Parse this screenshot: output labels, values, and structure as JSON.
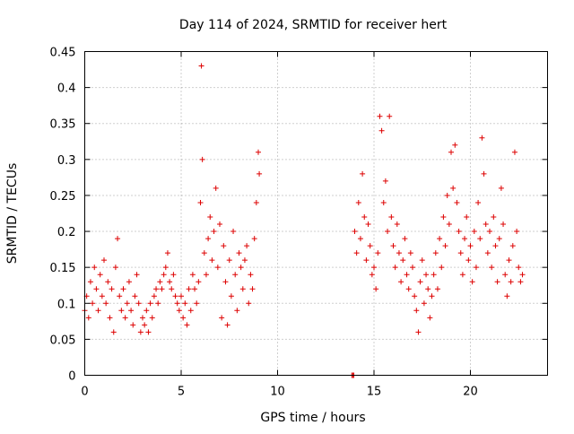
{
  "chart_data": {
    "type": "scatter",
    "title": "Day 114 of 2024, SRMTID for receiver hert",
    "xlabel": "GPS time / hours",
    "ylabel": "SRMTID / TECUs",
    "xlim": [
      0,
      24
    ],
    "ylim": [
      0,
      0.45
    ],
    "xticks": [
      0,
      5,
      10,
      15,
      20
    ],
    "xtick_labels": [
      "0",
      "5",
      "10",
      "15",
      "20"
    ],
    "yticks": [
      0,
      0.05,
      0.1,
      0.15,
      0.2,
      0.25,
      0.3,
      0.35,
      0.4,
      0.45
    ],
    "ytick_labels": [
      "0",
      "0.05",
      "0.1",
      "0.15",
      "0.2",
      "0.25",
      "0.3",
      "0.35",
      "0.4",
      "0.45"
    ],
    "grid": true,
    "marker": "+",
    "color": "#dd0000",
    "series": [
      {
        "name": "SRMTID",
        "points": [
          [
            0.0,
            0.09
          ],
          [
            0.1,
            0.11
          ],
          [
            0.2,
            0.08
          ],
          [
            0.3,
            0.13
          ],
          [
            0.4,
            0.1
          ],
          [
            0.5,
            0.15
          ],
          [
            0.6,
            0.12
          ],
          [
            0.7,
            0.09
          ],
          [
            0.8,
            0.14
          ],
          [
            0.9,
            0.11
          ],
          [
            1.0,
            0.16
          ],
          [
            1.1,
            0.1
          ],
          [
            1.2,
            0.13
          ],
          [
            1.3,
            0.08
          ],
          [
            1.4,
            0.12
          ],
          [
            1.5,
            0.06
          ],
          [
            1.6,
            0.15
          ],
          [
            1.7,
            0.19
          ],
          [
            1.8,
            0.11
          ],
          [
            1.9,
            0.09
          ],
          [
            2.0,
            0.12
          ],
          [
            2.1,
            0.08
          ],
          [
            2.2,
            0.1
          ],
          [
            2.3,
            0.13
          ],
          [
            2.4,
            0.09
          ],
          [
            2.5,
            0.07
          ],
          [
            2.6,
            0.11
          ],
          [
            2.7,
            0.14
          ],
          [
            2.8,
            0.1
          ],
          [
            2.9,
            0.06
          ],
          [
            3.0,
            0.08
          ],
          [
            3.1,
            0.07
          ],
          [
            3.2,
            0.09
          ],
          [
            3.3,
            0.06
          ],
          [
            3.4,
            0.1
          ],
          [
            3.5,
            0.08
          ],
          [
            3.6,
            0.11
          ],
          [
            3.7,
            0.12
          ],
          [
            3.8,
            0.1
          ],
          [
            3.9,
            0.13
          ],
          [
            4.0,
            0.12
          ],
          [
            4.1,
            0.14
          ],
          [
            4.2,
            0.15
          ],
          [
            4.3,
            0.17
          ],
          [
            4.4,
            0.13
          ],
          [
            4.5,
            0.12
          ],
          [
            4.6,
            0.14
          ],
          [
            4.7,
            0.11
          ],
          [
            4.8,
            0.1
          ],
          [
            4.9,
            0.09
          ],
          [
            5.0,
            0.11
          ],
          [
            5.1,
            0.08
          ],
          [
            5.2,
            0.1
          ],
          [
            5.3,
            0.07
          ],
          [
            5.4,
            0.12
          ],
          [
            5.5,
            0.09
          ],
          [
            5.6,
            0.14
          ],
          [
            5.7,
            0.12
          ],
          [
            5.8,
            0.1
          ],
          [
            5.9,
            0.13
          ],
          [
            6.0,
            0.24
          ],
          [
            6.05,
            0.43
          ],
          [
            6.1,
            0.3
          ],
          [
            6.2,
            0.17
          ],
          [
            6.3,
            0.14
          ],
          [
            6.4,
            0.19
          ],
          [
            6.5,
            0.22
          ],
          [
            6.6,
            0.16
          ],
          [
            6.7,
            0.2
          ],
          [
            6.8,
            0.26
          ],
          [
            6.9,
            0.15
          ],
          [
            7.0,
            0.21
          ],
          [
            7.1,
            0.08
          ],
          [
            7.2,
            0.18
          ],
          [
            7.3,
            0.13
          ],
          [
            7.4,
            0.07
          ],
          [
            7.5,
            0.16
          ],
          [
            7.6,
            0.11
          ],
          [
            7.7,
            0.2
          ],
          [
            7.8,
            0.14
          ],
          [
            7.9,
            0.09
          ],
          [
            8.0,
            0.17
          ],
          [
            8.1,
            0.15
          ],
          [
            8.2,
            0.12
          ],
          [
            8.3,
            0.16
          ],
          [
            8.4,
            0.18
          ],
          [
            8.5,
            0.1
          ],
          [
            8.6,
            0.14
          ],
          [
            8.7,
            0.12
          ],
          [
            8.8,
            0.19
          ],
          [
            8.9,
            0.24
          ],
          [
            9.0,
            0.31
          ],
          [
            9.05,
            0.28
          ],
          [
            13.85,
            0.0
          ],
          [
            13.9,
            0.0
          ],
          [
            13.95,
            0.0
          ],
          [
            14.0,
            0.2
          ],
          [
            14.1,
            0.17
          ],
          [
            14.2,
            0.24
          ],
          [
            14.3,
            0.19
          ],
          [
            14.4,
            0.28
          ],
          [
            14.5,
            0.22
          ],
          [
            14.6,
            0.16
          ],
          [
            14.7,
            0.21
          ],
          [
            14.8,
            0.18
          ],
          [
            14.9,
            0.14
          ],
          [
            15.0,
            0.15
          ],
          [
            15.1,
            0.12
          ],
          [
            15.2,
            0.17
          ],
          [
            15.3,
            0.36
          ],
          [
            15.4,
            0.34
          ],
          [
            15.5,
            0.24
          ],
          [
            15.6,
            0.27
          ],
          [
            15.7,
            0.2
          ],
          [
            15.8,
            0.36
          ],
          [
            15.9,
            0.22
          ],
          [
            16.0,
            0.18
          ],
          [
            16.1,
            0.15
          ],
          [
            16.2,
            0.21
          ],
          [
            16.3,
            0.17
          ],
          [
            16.4,
            0.13
          ],
          [
            16.5,
            0.16
          ],
          [
            16.6,
            0.19
          ],
          [
            16.7,
            0.14
          ],
          [
            16.8,
            0.12
          ],
          [
            16.9,
            0.17
          ],
          [
            17.0,
            0.15
          ],
          [
            17.1,
            0.11
          ],
          [
            17.2,
            0.09
          ],
          [
            17.3,
            0.06
          ],
          [
            17.4,
            0.13
          ],
          [
            17.5,
            0.16
          ],
          [
            17.6,
            0.1
          ],
          [
            17.7,
            0.14
          ],
          [
            17.8,
            0.12
          ],
          [
            17.9,
            0.08
          ],
          [
            18.0,
            0.11
          ],
          [
            18.1,
            0.14
          ],
          [
            18.2,
            0.17
          ],
          [
            18.3,
            0.12
          ],
          [
            18.4,
            0.19
          ],
          [
            18.5,
            0.15
          ],
          [
            18.6,
            0.22
          ],
          [
            18.7,
            0.18
          ],
          [
            18.8,
            0.25
          ],
          [
            18.9,
            0.21
          ],
          [
            19.0,
            0.31
          ],
          [
            19.1,
            0.26
          ],
          [
            19.2,
            0.32
          ],
          [
            19.3,
            0.24
          ],
          [
            19.4,
            0.2
          ],
          [
            19.5,
            0.17
          ],
          [
            19.6,
            0.14
          ],
          [
            19.7,
            0.19
          ],
          [
            19.8,
            0.22
          ],
          [
            19.9,
            0.16
          ],
          [
            20.0,
            0.18
          ],
          [
            20.1,
            0.13
          ],
          [
            20.2,
            0.2
          ],
          [
            20.3,
            0.15
          ],
          [
            20.4,
            0.24
          ],
          [
            20.5,
            0.19
          ],
          [
            20.6,
            0.33
          ],
          [
            20.7,
            0.28
          ],
          [
            20.8,
            0.21
          ],
          [
            20.9,
            0.17
          ],
          [
            21.0,
            0.2
          ],
          [
            21.1,
            0.15
          ],
          [
            21.2,
            0.22
          ],
          [
            21.3,
            0.18
          ],
          [
            21.4,
            0.13
          ],
          [
            21.5,
            0.19
          ],
          [
            21.6,
            0.26
          ],
          [
            21.7,
            0.21
          ],
          [
            21.8,
            0.14
          ],
          [
            21.9,
            0.11
          ],
          [
            22.0,
            0.16
          ],
          [
            22.1,
            0.13
          ],
          [
            22.2,
            0.18
          ],
          [
            22.3,
            0.31
          ],
          [
            22.4,
            0.2
          ],
          [
            22.5,
            0.15
          ],
          [
            22.6,
            0.13
          ],
          [
            22.7,
            0.14
          ]
        ]
      }
    ]
  }
}
